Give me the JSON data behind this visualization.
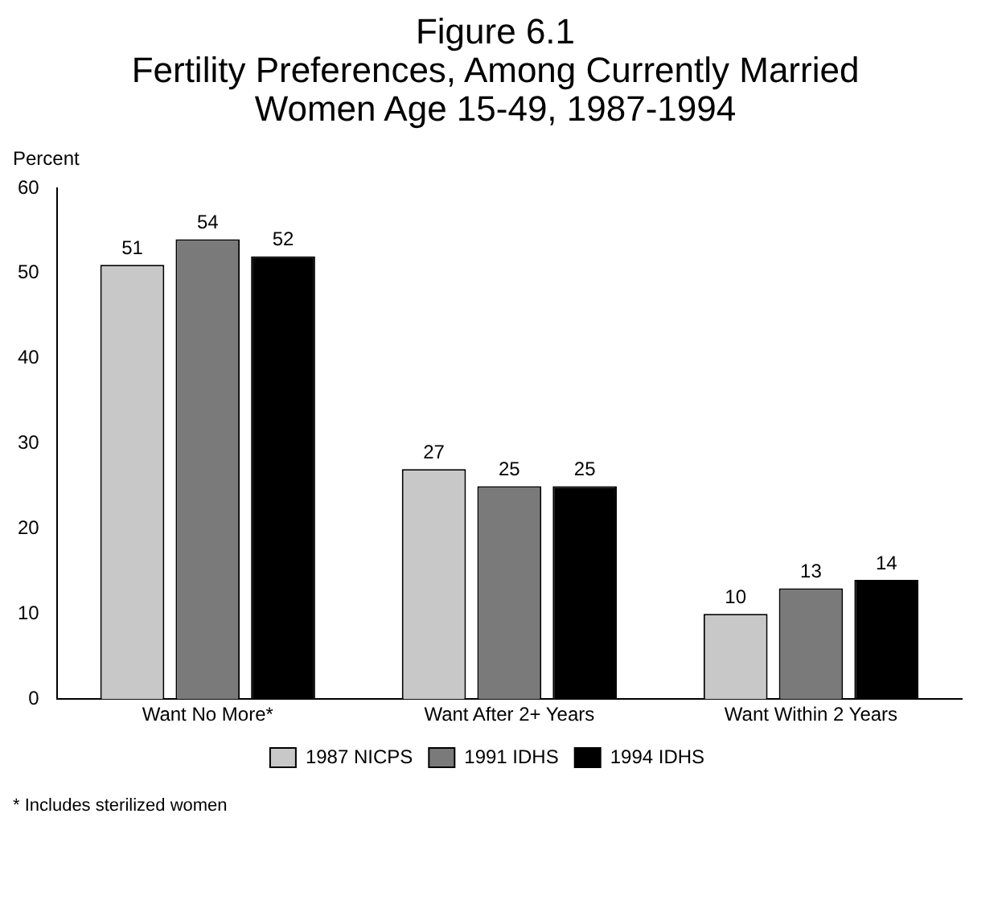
{
  "chart_data": {
    "type": "bar",
    "title": "Figure 6.1\nFertility Preferences, Among Currently Married\nWomen Age 15-49, 1987-1994",
    "ylabel": "Percent",
    "categories": [
      "Want No More*",
      "Want After 2+ Years",
      "Want Within 2 Years"
    ],
    "series": [
      {
        "name": "1987 NICPS",
        "color": "#c8c8c8",
        "values": [
          51,
          27,
          10
        ]
      },
      {
        "name": "1991 IDHS",
        "color": "#7a7a7a",
        "values": [
          54,
          25,
          13
        ]
      },
      {
        "name": "1994 IDHS",
        "color": "#000000",
        "values": [
          52,
          25,
          14
        ]
      }
    ],
    "ylim": [
      0,
      60
    ],
    "yticks": [
      0,
      10,
      20,
      30,
      40,
      50,
      60
    ],
    "grid": false,
    "legend": "bottom",
    "data_labels": true,
    "annotations": [
      "* Includes sterilized women"
    ]
  }
}
